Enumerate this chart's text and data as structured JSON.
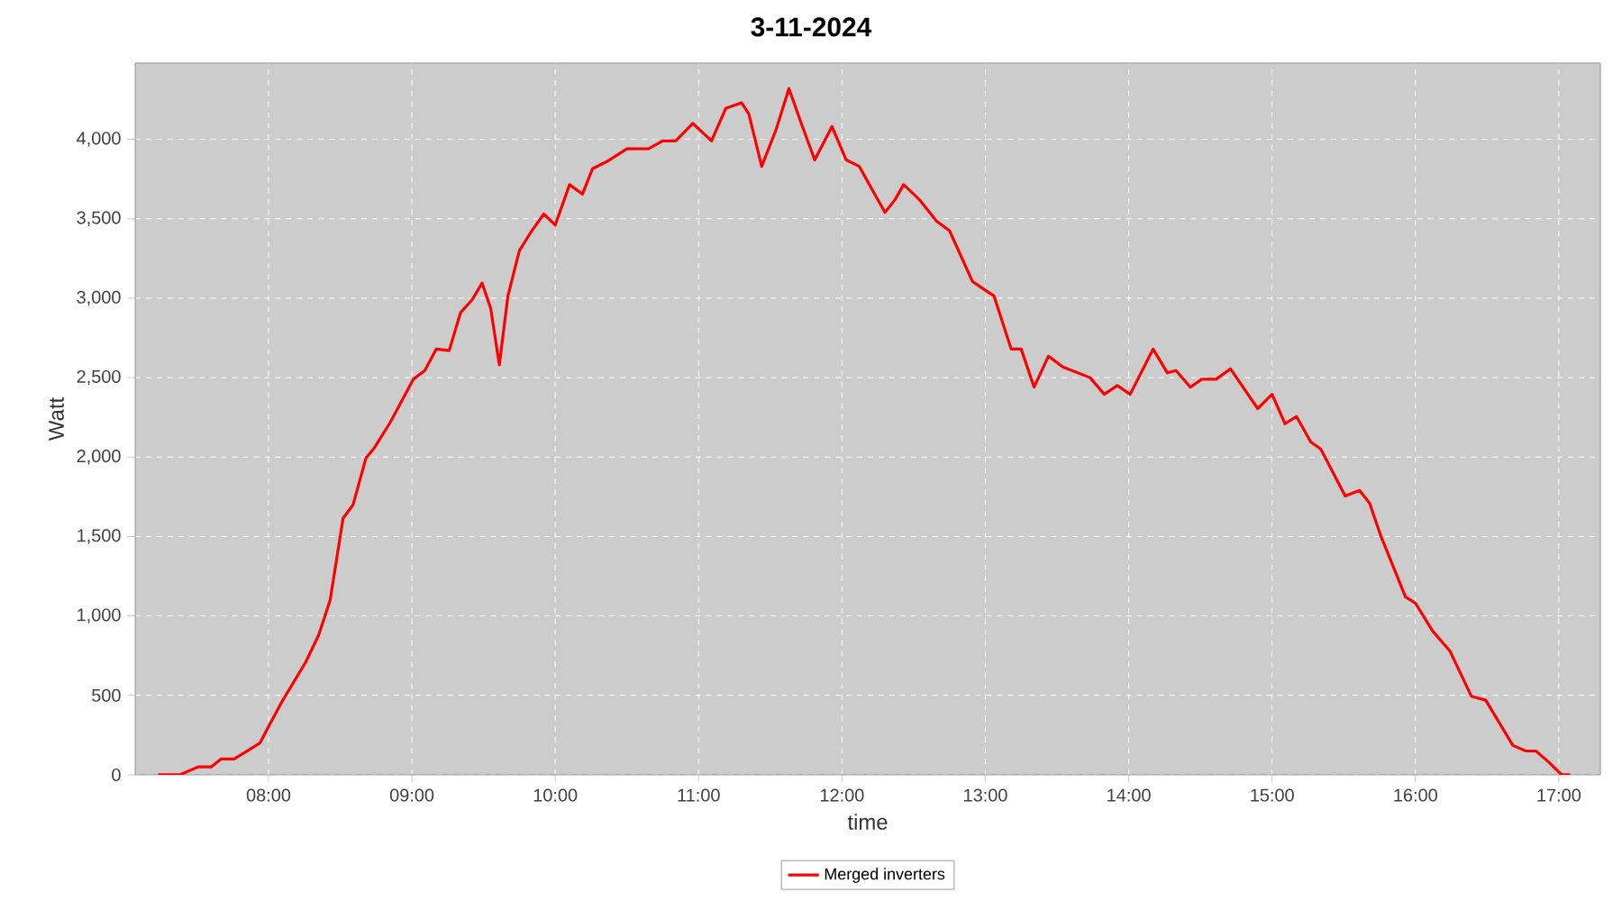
{
  "chart_data": {
    "type": "line",
    "title": "3-11-2024",
    "xlabel": "time",
    "ylabel": "Watt",
    "x": [
      7.23,
      7.38,
      7.51,
      7.6,
      7.67,
      7.76,
      7.85,
      7.94,
      8.01,
      8.1,
      8.18,
      8.26,
      8.35,
      8.43,
      8.52,
      8.59,
      8.68,
      8.74,
      8.85,
      9.01,
      9.09,
      9.17,
      9.26,
      9.34,
      9.42,
      9.49,
      9.55,
      9.61,
      9.67,
      9.75,
      9.83,
      9.92,
      10.0,
      10.1,
      10.19,
      10.26,
      10.36,
      10.5,
      10.65,
      10.75,
      10.84,
      10.96,
      11.09,
      11.19,
      11.3,
      11.35,
      11.44,
      11.54,
      11.63,
      11.71,
      11.81,
      11.93,
      12.03,
      12.12,
      12.2,
      12.3,
      12.37,
      12.43,
      12.54,
      12.66,
      12.75,
      12.91,
      13.0,
      13.06,
      13.18,
      13.25,
      13.34,
      13.44,
      13.54,
      13.73,
      13.83,
      13.92,
      14.01,
      14.17,
      14.27,
      14.33,
      14.43,
      14.51,
      14.61,
      14.71,
      14.9,
      15.0,
      15.09,
      15.17,
      15.27,
      15.34,
      15.51,
      15.61,
      15.68,
      15.76,
      15.93,
      16.0,
      16.12,
      16.24,
      16.39,
      16.49,
      16.68,
      16.77,
      16.84,
      16.93,
      17.02,
      17.08
    ],
    "series": [
      {
        "name": "Merged inverters",
        "color": "#ff0000",
        "values": [
          0,
          0,
          50,
          50,
          100,
          100,
          150,
          200,
          320,
          470,
          590,
          710,
          880,
          1100,
          1615,
          1700,
          1995,
          2060,
          2220,
          2490,
          2545,
          2680,
          2670,
          2910,
          2990,
          3095,
          2935,
          2580,
          3015,
          3300,
          3415,
          3530,
          3460,
          3715,
          3655,
          3815,
          3860,
          3940,
          3940,
          3990,
          3990,
          4100,
          3990,
          4195,
          4230,
          4160,
          3830,
          4060,
          4320,
          4115,
          3870,
          4080,
          3870,
          3830,
          3700,
          3540,
          3620,
          3715,
          3620,
          3485,
          3425,
          3105,
          3050,
          3015,
          2680,
          2680,
          2440,
          2635,
          2567,
          2500,
          2395,
          2450,
          2395,
          2680,
          2530,
          2545,
          2440,
          2490,
          2490,
          2555,
          2305,
          2395,
          2210,
          2255,
          2095,
          2050,
          1755,
          1790,
          1710,
          1500,
          1120,
          1080,
          905,
          780,
          495,
          470,
          185,
          150,
          150,
          80,
          0,
          0
        ]
      }
    ],
    "xlim": [
      7.07,
      17.29
    ],
    "ylim": [
      0,
      4480
    ],
    "xticks": [
      {
        "value": 8,
        "label": "08:00"
      },
      {
        "value": 9,
        "label": "09:00"
      },
      {
        "value": 10,
        "label": "10:00"
      },
      {
        "value": 11,
        "label": "11:00"
      },
      {
        "value": 12,
        "label": "12:00"
      },
      {
        "value": 13,
        "label": "13:00"
      },
      {
        "value": 14,
        "label": "14:00"
      },
      {
        "value": 15,
        "label": "15:00"
      },
      {
        "value": 16,
        "label": "16:00"
      },
      {
        "value": 17,
        "label": "17:00"
      }
    ],
    "yticks": [
      {
        "value": 0,
        "label": "0"
      },
      {
        "value": 500,
        "label": "500"
      },
      {
        "value": 1000,
        "label": "1,000"
      },
      {
        "value": 1500,
        "label": "1,500"
      },
      {
        "value": 2000,
        "label": "2,000"
      },
      {
        "value": 2500,
        "label": "2,500"
      },
      {
        "value": 3000,
        "label": "3,000"
      },
      {
        "value": 3500,
        "label": "3,500"
      },
      {
        "value": 4000,
        "label": "4,000"
      }
    ],
    "grid": true,
    "legend": "bottom",
    "marker": "none",
    "line_style": "solid"
  }
}
